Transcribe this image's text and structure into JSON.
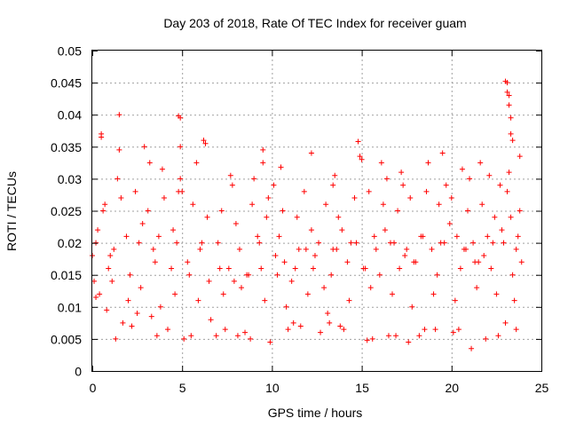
{
  "chart_data": {
    "type": "scatter",
    "title": "Day 203 of 2018, Rate Of TEC Index for receiver guam",
    "xlabel": "GPS time / hours",
    "ylabel": "ROTI / TECUs",
    "xlim": [
      0,
      25
    ],
    "ylim": [
      0,
      0.05
    ],
    "x_ticks": [
      "0",
      "5",
      "10",
      "15",
      "20",
      "25"
    ],
    "y_ticks": [
      "0",
      "0.005",
      "0.01",
      "0.015",
      "0.02",
      "0.025",
      "0.03",
      "0.035",
      "0.04",
      "0.045",
      "0.05"
    ],
    "grid": true,
    "marker": "+",
    "color": "#ff0000",
    "series": [
      {
        "x": [
          0.5,
          0.5,
          1.5,
          1.5,
          4.8,
          4.9,
          4.9,
          6.2,
          6.3,
          9.5,
          9.5,
          12.2,
          14.8,
          14.9,
          15.0,
          23.0,
          23.1,
          23.1,
          23.2,
          23.2,
          23.3,
          23.3,
          23.4,
          23.8,
          2.9,
          3.2,
          3.9,
          5.8,
          7.7,
          10.5,
          13.5,
          16.1,
          17.2,
          18.7,
          19.5,
          20.6,
          21.6,
          22.1,
          0.2,
          0.8,
          1.7,
          2.5,
          3.3,
          4.2,
          5.5,
          6.6,
          7.4,
          8.1,
          8.8,
          9.9,
          10.9,
          11.6,
          12.7,
          13.2,
          14.0,
          15.6,
          16.5,
          17.6,
          18.2,
          19.1,
          20.1,
          21.1,
          22.6,
          23.6,
          1.3,
          2.2,
          3.6,
          5.1,
          6.9,
          8.5,
          11.2,
          13.8,
          15.3,
          16.9,
          18.5,
          20.4,
          21.9,
          23.0,
          0.0,
          0.1,
          0.3,
          0.6,
          1.0,
          1.9,
          2.8,
          3.4,
          4.5,
          5.3,
          6.1,
          7.1,
          7.9,
          8.7,
          9.2,
          9.7,
          10.2,
          10.7,
          11.3,
          11.9,
          12.4,
          12.9,
          13.4,
          13.9,
          14.4,
          15.2,
          15.8,
          16.3,
          16.8,
          17.4,
          17.9,
          18.4,
          18.9,
          19.4,
          19.9,
          20.3,
          20.8,
          21.3,
          21.8,
          22.3,
          22.8,
          23.3,
          23.7,
          23.9,
          0.4,
          1.1,
          2.0,
          2.7,
          3.8,
          4.6,
          5.9,
          7.3,
          8.3,
          9.6,
          10.8,
          12.0,
          13.1,
          14.3,
          15.5,
          16.7,
          17.8,
          19.0,
          20.2,
          21.4,
          22.5,
          23.5,
          0.7,
          1.6,
          2.4,
          3.1,
          4.0,
          4.8,
          5.6,
          6.4,
          7.2,
          8.0,
          8.9,
          9.8,
          10.6,
          11.4,
          12.2,
          13.0,
          13.7,
          14.6,
          15.4,
          16.2,
          17.0,
          17.7,
          18.6,
          19.3,
          20.0,
          20.9,
          21.7,
          22.4,
          23.1,
          23.8,
          0.9,
          2.1,
          3.5,
          4.4,
          5.4,
          6.5,
          7.6,
          8.6,
          9.4,
          10.3,
          11.1,
          12.3,
          13.3,
          14.2,
          15.1,
          16.0,
          17.1,
          18.0,
          19.2,
          20.5,
          21.5,
          22.2,
          23.4,
          0.2,
          1.2,
          2.6,
          3.7,
          4.7,
          6.0,
          7.0,
          8.2,
          9.3,
          10.4,
          11.5,
          12.6,
          13.6,
          14.7,
          15.7,
          16.6,
          17.5,
          18.3,
          19.6,
          20.7,
          21.2,
          22.0,
          22.9,
          23.6,
          1.4,
          4.9,
          5.0,
          7.8,
          9.0,
          10.1,
          11.8,
          13.4,
          16.4,
          17.3,
          19.7,
          21.0,
          22.7,
          23.2
        ],
        "y": [
          0.037,
          0.0365,
          0.04,
          0.0345,
          0.0398,
          0.0395,
          0.035,
          0.036,
          0.0355,
          0.0345,
          0.0325,
          0.034,
          0.0358,
          0.0335,
          0.033,
          0.0452,
          0.045,
          0.0435,
          0.043,
          0.0415,
          0.0395,
          0.037,
          0.036,
          0.0335,
          0.035,
          0.0325,
          0.0315,
          0.0325,
          0.0305,
          0.0318,
          0.0305,
          0.0325,
          0.031,
          0.0325,
          0.034,
          0.0315,
          0.0325,
          0.0305,
          0.0115,
          0.0095,
          0.0075,
          0.009,
          0.0085,
          0.0065,
          0.0055,
          0.008,
          0.0065,
          0.0055,
          0.005,
          0.0045,
          0.0065,
          0.007,
          0.006,
          0.0075,
          0.0065,
          0.005,
          0.0055,
          0.0045,
          0.0055,
          0.0065,
          0.006,
          0.0035,
          0.0055,
          0.0065,
          0.005,
          0.007,
          0.0055,
          0.005,
          0.0055,
          0.006,
          0.0075,
          0.007,
          0.0048,
          0.0055,
          0.0065,
          0.0065,
          0.005,
          0.0075,
          0.018,
          0.014,
          0.022,
          0.025,
          0.018,
          0.021,
          0.023,
          0.019,
          0.022,
          0.017,
          0.02,
          0.016,
          0.014,
          0.015,
          0.021,
          0.024,
          0.018,
          0.017,
          0.016,
          0.019,
          0.018,
          0.013,
          0.019,
          0.022,
          0.02,
          0.016,
          0.019,
          0.022,
          0.02,
          0.018,
          0.017,
          0.021,
          0.019,
          0.02,
          0.023,
          0.021,
          0.019,
          0.017,
          0.018,
          0.02,
          0.022,
          0.024,
          0.021,
          0.017,
          0.012,
          0.014,
          0.011,
          0.013,
          0.01,
          0.012,
          0.011,
          0.012,
          0.013,
          0.011,
          0.01,
          0.012,
          0.009,
          0.011,
          0.013,
          0.012,
          0.01,
          0.012,
          0.011,
          0.013,
          0.012,
          0.011,
          0.026,
          0.027,
          0.028,
          0.025,
          0.027,
          0.028,
          0.026,
          0.024,
          0.025,
          0.023,
          0.026,
          0.027,
          0.025,
          0.024,
          0.022,
          0.026,
          0.024,
          0.027,
          0.028,
          0.026,
          0.025,
          0.027,
          0.028,
          0.026,
          0.027,
          0.025,
          0.026,
          0.024,
          0.028,
          0.025,
          0.016,
          0.015,
          0.017,
          0.016,
          0.015,
          0.014,
          0.016,
          0.015,
          0.016,
          0.015,
          0.014,
          0.016,
          0.015,
          0.017,
          0.016,
          0.015,
          0.016,
          0.017,
          0.015,
          0.016,
          0.017,
          0.016,
          0.015,
          0.02,
          0.019,
          0.02,
          0.021,
          0.02,
          0.019,
          0.02,
          0.019,
          0.02,
          0.021,
          0.019,
          0.02,
          0.019,
          0.02,
          0.021,
          0.02,
          0.019,
          0.021,
          0.02,
          0.019,
          0.02,
          0.021,
          0.02,
          0.019,
          0.03,
          0.03,
          0.028,
          0.029,
          0.03,
          0.029,
          0.028,
          0.029,
          0.03,
          0.029,
          0.029,
          0.03,
          0.029,
          0.031
        ]
      }
    ]
  }
}
